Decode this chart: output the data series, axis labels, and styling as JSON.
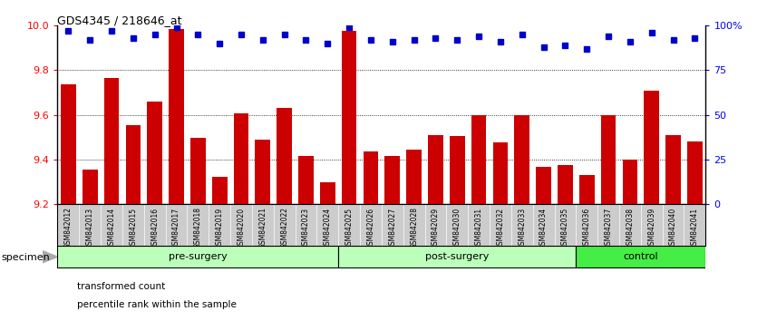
{
  "title": "GDS4345 / 218646_at",
  "samples": [
    "GSM842012",
    "GSM842013",
    "GSM842014",
    "GSM842015",
    "GSM842016",
    "GSM842017",
    "GSM842018",
    "GSM842019",
    "GSM842020",
    "GSM842021",
    "GSM842022",
    "GSM842023",
    "GSM842024",
    "GSM842025",
    "GSM842026",
    "GSM842027",
    "GSM842028",
    "GSM842029",
    "GSM842030",
    "GSM842031",
    "GSM842032",
    "GSM842033",
    "GSM842034",
    "GSM842035",
    "GSM842036",
    "GSM842037",
    "GSM842038",
    "GSM842039",
    "GSM842040",
    "GSM842041"
  ],
  "bar_values": [
    9.735,
    9.355,
    9.765,
    9.555,
    9.66,
    9.985,
    9.495,
    9.32,
    9.605,
    9.49,
    9.63,
    9.415,
    9.295,
    9.975,
    9.435,
    9.415,
    9.445,
    9.51,
    9.505,
    9.6,
    9.475,
    9.6,
    9.365,
    9.375,
    9.33,
    9.6,
    9.4,
    9.71,
    9.51,
    9.48
  ],
  "percentile_values": [
    97,
    92,
    97,
    93,
    95,
    99,
    95,
    90,
    95,
    92,
    95,
    92,
    90,
    99,
    92,
    91,
    92,
    93,
    92,
    94,
    91,
    95,
    88,
    89,
    87,
    94,
    91,
    96,
    92,
    93
  ],
  "ymin": 9.2,
  "ymax": 10.0,
  "yticks": [
    9.2,
    9.4,
    9.6,
    9.8,
    10.0
  ],
  "right_yticks": [
    0,
    25,
    50,
    75,
    100
  ],
  "right_ytick_labels": [
    "0",
    "25",
    "50",
    "75",
    "100%"
  ],
  "bar_color": "#cc0000",
  "percentile_color": "#0000cc",
  "groups": [
    {
      "label": "pre-surgery",
      "start": 0,
      "end": 13,
      "color": "#bbffbb"
    },
    {
      "label": "post-surgery",
      "start": 13,
      "end": 24,
      "color": "#bbffbb"
    },
    {
      "label": "control",
      "start": 24,
      "end": 30,
      "color": "#44ee44"
    }
  ],
  "legend_items": [
    {
      "label": "transformed count",
      "color": "#cc0000"
    },
    {
      "label": "percentile rank within the sample",
      "color": "#0000cc"
    }
  ],
  "specimen_label": "specimen",
  "background_color": "#ffffff",
  "xtick_bg_color": "#cccccc",
  "dotted_lines": [
    9.4,
    9.6,
    9.8
  ]
}
